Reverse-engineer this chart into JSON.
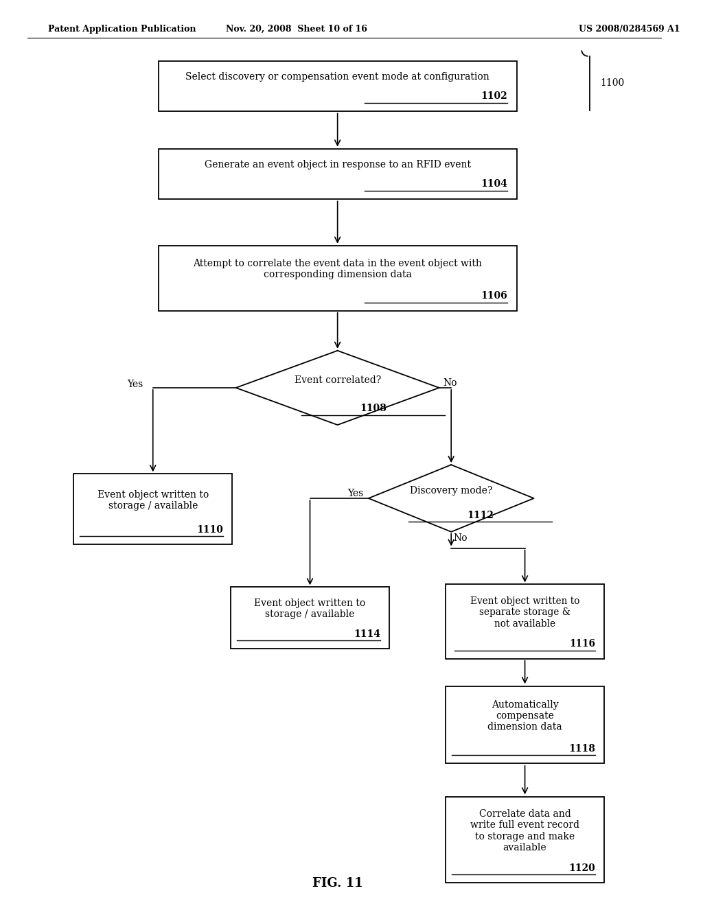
{
  "bg_color": "#ffffff",
  "header_left": "Patent Application Publication",
  "header_mid": "Nov. 20, 2008  Sheet 10 of 16",
  "header_right": "US 2008/0284569 A1",
  "figure_label": "FIG. 11",
  "diagram_ref": "1100"
}
